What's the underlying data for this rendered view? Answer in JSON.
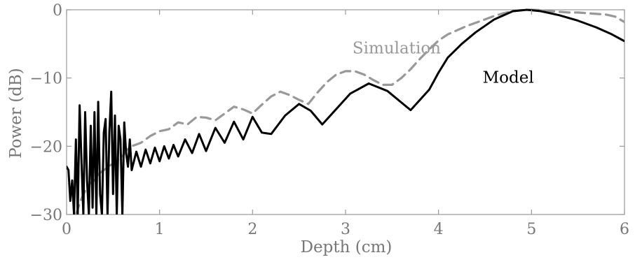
{
  "chart_data": {
    "type": "line",
    "title": "",
    "xlabel": "Depth (cm)",
    "ylabel": "Power (dB)",
    "xlim": [
      0,
      6
    ],
    "ylim": [
      -30,
      0
    ],
    "xticks": [
      0,
      1,
      2,
      3,
      4,
      5,
      6
    ],
    "yticks": [
      0,
      -10,
      -20,
      -30
    ],
    "xtick_labels": [
      "0",
      "1",
      "2",
      "3",
      "4",
      "5",
      "6"
    ],
    "ytick_labels": [
      "0",
      "−10",
      "−20",
      "−30"
    ],
    "grid": false,
    "series": [
      {
        "name": "Simulation",
        "color": "#999999",
        "style": "dashed",
        "x": [
          0.1,
          0.15,
          0.2,
          0.25,
          0.3,
          0.35,
          0.4,
          0.45,
          0.5,
          0.55,
          0.6,
          0.65,
          0.7,
          0.8,
          0.9,
          1.0,
          1.1,
          1.2,
          1.3,
          1.4,
          1.5,
          1.6,
          1.7,
          1.8,
          1.9,
          2.0,
          2.1,
          2.2,
          2.3,
          2.4,
          2.5,
          2.6,
          2.7,
          2.8,
          2.9,
          3.0,
          3.1,
          3.2,
          3.3,
          3.4,
          3.5,
          3.6,
          3.7,
          3.8,
          3.9,
          4.0,
          4.1,
          4.2,
          4.3,
          4.4,
          4.5,
          4.6,
          4.7,
          4.8,
          4.9,
          5.0,
          5.1,
          5.2,
          5.3,
          5.4,
          5.5,
          5.6,
          5.7,
          5.8,
          5.9,
          6.0
        ],
        "y": [
          -30.0,
          -28.0,
          -26.5,
          -25.5,
          -25.0,
          -24.0,
          -23.5,
          -23.0,
          -22.5,
          -22.0,
          -21.5,
          -20.5,
          -20.0,
          -19.5,
          -18.5,
          -17.8,
          -17.5,
          -16.5,
          -16.8,
          -15.7,
          -15.8,
          -16.2,
          -15.2,
          -14.2,
          -14.6,
          -15.2,
          -13.9,
          -12.7,
          -12.0,
          -12.5,
          -13.2,
          -13.8,
          -12.1,
          -10.6,
          -9.5,
          -9.0,
          -9.0,
          -9.5,
          -10.3,
          -11.0,
          -11.0,
          -10.0,
          -8.7,
          -7.2,
          -5.8,
          -4.5,
          -3.6,
          -3.0,
          -2.4,
          -1.9,
          -1.4,
          -0.9,
          -0.5,
          -0.2,
          -0.05,
          0.0,
          -0.05,
          -0.2,
          -0.3,
          -0.4,
          -0.4,
          -0.5,
          -0.6,
          -0.7,
          -1.0,
          -1.8
        ]
      },
      {
        "name": "Model",
        "color": "#000000",
        "style": "solid",
        "x": [
          0.0,
          0.02,
          0.04,
          0.06,
          0.08,
          0.1,
          0.12,
          0.14,
          0.16,
          0.18,
          0.2,
          0.22,
          0.24,
          0.26,
          0.28,
          0.3,
          0.32,
          0.34,
          0.36,
          0.38,
          0.4,
          0.42,
          0.44,
          0.46,
          0.48,
          0.5,
          0.52,
          0.54,
          0.56,
          0.58,
          0.6,
          0.62,
          0.64,
          0.66,
          0.68,
          0.7,
          0.75,
          0.8,
          0.85,
          0.9,
          0.95,
          1.0,
          1.05,
          1.1,
          1.15,
          1.2,
          1.275,
          1.35,
          1.425,
          1.5,
          1.6,
          1.7,
          1.8,
          1.9,
          2.0,
          2.1,
          2.2,
          2.35,
          2.5,
          2.625,
          2.75,
          2.95,
          3.05,
          3.25,
          3.45,
          3.7,
          3.9,
          4.0,
          4.1,
          4.25,
          4.4,
          4.6,
          4.8,
          4.95,
          5.1,
          5.3,
          5.5,
          5.7,
          5.85,
          6.0
        ],
        "y": [
          -23.0,
          -23.5,
          -28.0,
          -25.0,
          -30.0,
          -19.0,
          -30.0,
          -14.0,
          -22.0,
          -30.0,
          -15.0,
          -25.0,
          -30.0,
          -17.0,
          -29.0,
          -15.0,
          -30.0,
          -13.5,
          -27.0,
          -30.0,
          -18.0,
          -16.0,
          -30.0,
          -18.0,
          -12.0,
          -27.0,
          -15.5,
          -30.0,
          -17.0,
          -19.0,
          -30.0,
          -16.5,
          -21.0,
          -23.0,
          -19.0,
          -23.5,
          -20.8,
          -23.0,
          -20.5,
          -22.5,
          -20.2,
          -22.2,
          -20.0,
          -21.8,
          -19.8,
          -21.5,
          -19.0,
          -21.0,
          -18.2,
          -20.7,
          -17.3,
          -19.5,
          -16.4,
          -19.0,
          -15.7,
          -18.0,
          -18.2,
          -15.5,
          -13.8,
          -14.8,
          -16.8,
          -13.8,
          -12.3,
          -10.8,
          -11.9,
          -14.7,
          -11.7,
          -9.2,
          -7.0,
          -5.0,
          -3.3,
          -1.4,
          -0.2,
          0.0,
          -0.2,
          -0.8,
          -1.6,
          -2.6,
          -3.5,
          -4.6
        ]
      }
    ],
    "annotations": [
      {
        "text": "Simulation",
        "x": 3.55,
        "y": -6.4,
        "color": "#999999"
      },
      {
        "text": "Model",
        "x": 4.75,
        "y": -10.7,
        "color": "#000000"
      }
    ]
  }
}
